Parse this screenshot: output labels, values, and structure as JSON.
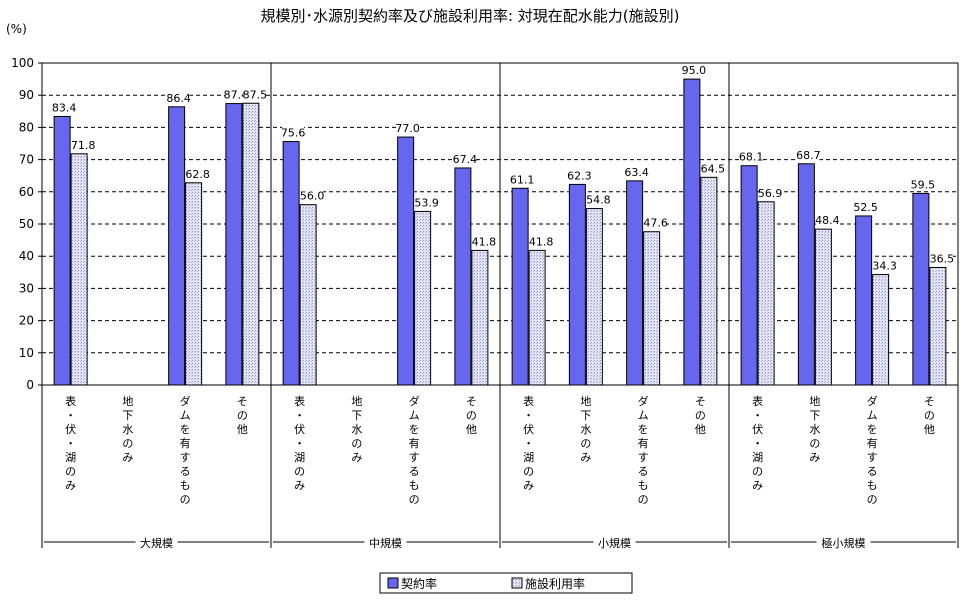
{
  "chart_data": {
    "type": "bar",
    "title": "規模別･水源別契約率及び施設利用率: 対現在配水能力(施設別)",
    "ylabel": "(%)",
    "ylim": [
      0,
      100
    ],
    "yticks": [
      0,
      10,
      20,
      30,
      40,
      50,
      60,
      70,
      80,
      90,
      100
    ],
    "grid": true,
    "legend_position": "bottom",
    "groups": [
      {
        "name": "大規模",
        "categories": [
          "表・伏・湖のみ",
          "地下水のみ",
          "ダムを有するもの",
          "その他"
        ]
      },
      {
        "name": "中規模",
        "categories": [
          "表・伏・湖のみ",
          "地下水のみ",
          "ダムを有するもの",
          "その他"
        ]
      },
      {
        "name": "小規模",
        "categories": [
          "表・伏・湖のみ",
          "地下水のみ",
          "ダムを有するもの",
          "その他"
        ]
      },
      {
        "name": "極小規模",
        "categories": [
          "表・伏・湖のみ",
          "地下水のみ",
          "ダムを有するもの",
          "その他"
        ]
      }
    ],
    "series": [
      {
        "name": "契約率",
        "color": "#6666ee",
        "values": [
          83.4,
          null,
          86.4,
          87.4,
          75.6,
          null,
          77.0,
          67.4,
          61.1,
          62.3,
          63.4,
          95.0,
          68.1,
          68.7,
          52.5,
          59.5
        ],
        "labels": [
          "83.4",
          "",
          "86.4",
          "87.4",
          "75.6",
          "",
          "77.0",
          "67.4",
          "61.1",
          "62.3",
          "63.4",
          "95.0",
          "68.1",
          "68.7",
          "52.5",
          "59.5"
        ]
      },
      {
        "name": "施設利用率",
        "color": "#dde0f4",
        "values": [
          71.8,
          null,
          62.8,
          87.5,
          56.0,
          null,
          53.9,
          41.8,
          41.8,
          54.8,
          47.6,
          64.5,
          56.9,
          48.4,
          34.3,
          36.5
        ],
        "labels": [
          "71.8",
          "",
          "62.8",
          "87.5",
          "56.0",
          "",
          "53.9",
          "41.8",
          "41.8",
          "54.8",
          "47.6",
          "64.5",
          "56.9",
          "48.4",
          "34.3",
          "36.5"
        ]
      }
    ]
  }
}
